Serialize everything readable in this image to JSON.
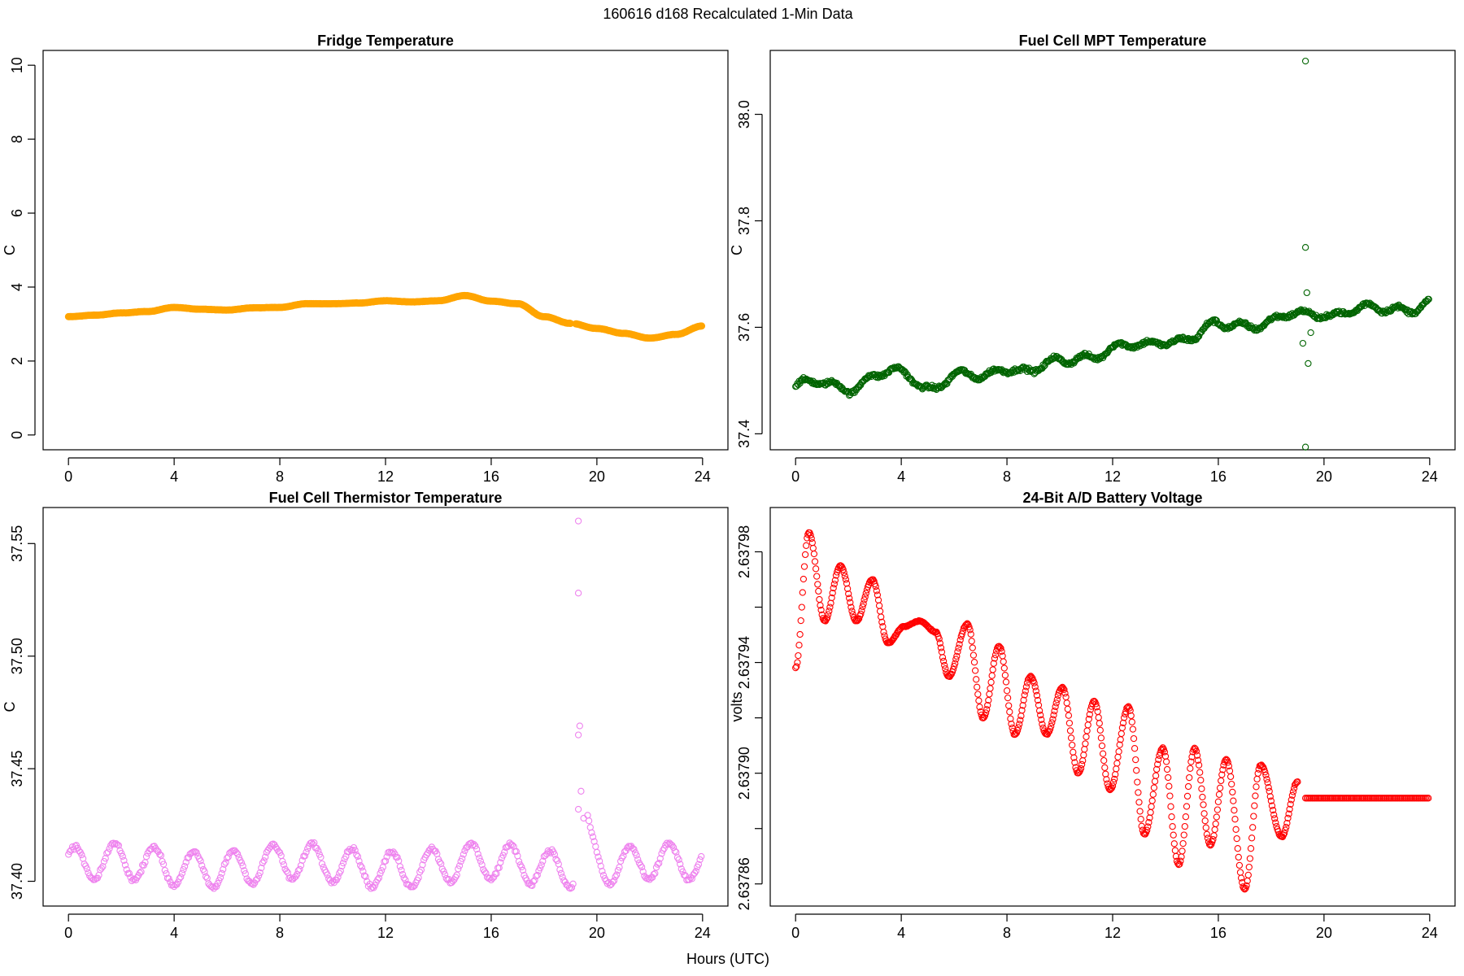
{
  "figure": {
    "suptitle": "160616   d168   Recalculated 1-Min Data",
    "xlabel": "Hours (UTC)"
  },
  "chart_data": [
    {
      "type": "scatter",
      "title": "Fridge Temperature",
      "xlabel": "",
      "ylabel": "C",
      "xlim": [
        -0.96,
        24.96
      ],
      "ylim": [
        -0.4,
        10.4
      ],
      "xticks": [
        0,
        4,
        8,
        12,
        16,
        20,
        24
      ],
      "yticks": [
        0,
        2,
        4,
        6,
        8,
        10
      ],
      "ytick_labels": [
        "0",
        "2",
        "4",
        "6",
        "8",
        "10"
      ],
      "color": "#FFA500",
      "marker": "filled-circle",
      "series_shape": "slow wave starting 3.2 C at 0 h, rising to 3.8 C near 15.3 h, gap near 19.1 h, falling to 2.6 C near 21.9 h, ending 2.95 C at 24 h",
      "key_points": [
        [
          0,
          3.2
        ],
        [
          1,
          3.24
        ],
        [
          2,
          3.3
        ],
        [
          3,
          3.34
        ],
        [
          4,
          3.45
        ],
        [
          5,
          3.4
        ],
        [
          6,
          3.38
        ],
        [
          7,
          3.44
        ],
        [
          8,
          3.45
        ],
        [
          9,
          3.55
        ],
        [
          10,
          3.55
        ],
        [
          11,
          3.57
        ],
        [
          12,
          3.63
        ],
        [
          13,
          3.6
        ],
        [
          14,
          3.63
        ],
        [
          15,
          3.77
        ],
        [
          16,
          3.62
        ],
        [
          17,
          3.55
        ],
        [
          18,
          3.2
        ],
        [
          19,
          3.02
        ],
        [
          20,
          2.88
        ],
        [
          21,
          2.75
        ],
        [
          22,
          2.62
        ],
        [
          23,
          2.72
        ],
        [
          24,
          2.95
        ]
      ],
      "gaps": [
        [
          19.0,
          19.2
        ]
      ]
    },
    {
      "type": "scatter",
      "title": "Fuel Cell MPT Temperature",
      "xlabel": "",
      "ylabel": "C",
      "xlim": [
        -0.96,
        24.96
      ],
      "ylim": [
        37.37,
        38.12
      ],
      "xticks": [
        0,
        4,
        8,
        12,
        16,
        20,
        24
      ],
      "yticks": [
        37.4,
        37.6,
        37.8,
        38.0
      ],
      "ytick_labels": [
        "37.4",
        "37.6",
        "37.8",
        "38.0"
      ],
      "color": "#006400",
      "marker": "open-circle",
      "series_shape": "noisy rising trend from about 37.48 C at 0 h to about 37.64 C at 24 h, with outliers near 19.3 h",
      "key_points": [
        [
          0,
          37.49
        ],
        [
          1,
          37.49
        ],
        [
          2,
          37.49
        ],
        [
          3,
          37.51
        ],
        [
          4,
          37.51
        ],
        [
          5,
          37.49
        ],
        [
          6,
          37.51
        ],
        [
          7,
          37.5
        ],
        [
          8,
          37.53
        ],
        [
          9,
          37.52
        ],
        [
          10,
          37.53
        ],
        [
          11,
          37.55
        ],
        [
          12,
          37.56
        ],
        [
          13,
          37.56
        ],
        [
          14,
          37.58
        ],
        [
          15,
          37.58
        ],
        [
          16,
          37.6
        ],
        [
          17,
          37.61
        ],
        [
          18,
          37.61
        ],
        [
          19,
          37.62
        ],
        [
          20,
          37.63
        ],
        [
          21,
          37.63
        ],
        [
          22,
          37.63
        ],
        [
          23,
          37.64
        ],
        [
          24,
          37.645
        ]
      ],
      "outliers": [
        [
          19.3,
          38.1
        ],
        [
          19.3,
          37.75
        ],
        [
          19.4,
          37.532
        ],
        [
          19.3,
          37.375
        ],
        [
          19.2,
          37.57
        ],
        [
          19.5,
          37.59
        ],
        [
          19.35,
          37.665
        ]
      ]
    },
    {
      "type": "scatter",
      "title": "Fuel Cell Thermistor Temperature",
      "xlabel": "",
      "ylabel": "C",
      "xlim": [
        -0.96,
        24.96
      ],
      "ylim": [
        37.389,
        37.566
      ],
      "xticks": [
        0,
        4,
        8,
        12,
        16,
        20,
        24
      ],
      "yticks": [
        37.4,
        37.45,
        37.5,
        37.55
      ],
      "ytick_labels": [
        "37.40",
        "37.45",
        "37.50",
        "37.55"
      ],
      "color": "#EE82EE",
      "marker": "open-circle",
      "series_shape": "oscillation around 37.407 C with amplitude about 0.008 C and period about 1.5 h, spike at 19.3 h",
      "baseline": 37.407,
      "amplitude": 0.008,
      "period_hours": 1.5,
      "spike": [
        [
          19.3,
          37.56
        ],
        [
          19.3,
          37.528
        ],
        [
          19.35,
          37.469
        ],
        [
          19.3,
          37.465
        ],
        [
          19.4,
          37.44
        ],
        [
          19.3,
          37.432
        ],
        [
          19.5,
          37.428
        ]
      ]
    },
    {
      "type": "scatter",
      "title": "24-Bit A/D Battery Voltage",
      "xlabel": "",
      "ylabel": "volts",
      "xlim": [
        -0.96,
        24.96
      ],
      "ylim": [
        2.637852,
        2.637996
      ],
      "xticks": [
        0,
        4,
        8,
        12,
        16,
        20,
        24
      ],
      "yticks": [
        2.63786,
        2.63788,
        2.6379,
        2.63792,
        2.63794,
        2.63796,
        2.63798
      ],
      "ytick_labels": [
        "2.63786",
        "",
        "2.63790",
        "",
        "2.63794",
        "",
        "2.63798"
      ],
      "color": "#FF0000",
      "marker": "open-circle",
      "series_shape": "damped-drift oscillation with period about 1.2 h, peaks decreasing from 2.637987 V to 2.637903 V, troughs from 2.637955 V to 2.637858 V, then flat at 2.637891 V from 19.3 h to 24 h",
      "peaks": [
        [
          0.5,
          2.637987
        ],
        [
          1.7,
          2.637975
        ],
        [
          2.9,
          2.63797
        ],
        [
          4.1,
          2.637953
        ],
        [
          5.3,
          2.637951
        ],
        [
          6.5,
          2.637954
        ],
        [
          7.7,
          2.637946
        ],
        [
          8.9,
          2.637935
        ],
        [
          10.1,
          2.637931
        ],
        [
          11.3,
          2.637926
        ],
        [
          12.6,
          2.637924
        ],
        [
          13.9,
          2.637909
        ],
        [
          15.1,
          2.637909
        ],
        [
          16.3,
          2.637905
        ],
        [
          17.6,
          2.637903
        ]
      ],
      "troughs": [
        [
          1.1,
          2.637955
        ],
        [
          2.3,
          2.637955
        ],
        [
          3.5,
          2.637947
        ],
        [
          4.7,
          2.637955
        ],
        [
          5.8,
          2.637935
        ],
        [
          7.1,
          2.63792
        ],
        [
          8.3,
          2.637914
        ],
        [
          9.5,
          2.637914
        ],
        [
          10.7,
          2.6379
        ],
        [
          11.9,
          2.637894
        ],
        [
          13.2,
          2.637878
        ],
        [
          14.5,
          2.637867
        ],
        [
          15.7,
          2.637874
        ],
        [
          17.0,
          2.637858
        ],
        [
          18.4,
          2.637877
        ]
      ],
      "start": [
        0,
        2.637938
      ],
      "end_of_oscillation": [
        19.0,
        2.637897
      ],
      "flat_value": 2.637891,
      "flat_range": [
        19.3,
        24
      ]
    }
  ]
}
